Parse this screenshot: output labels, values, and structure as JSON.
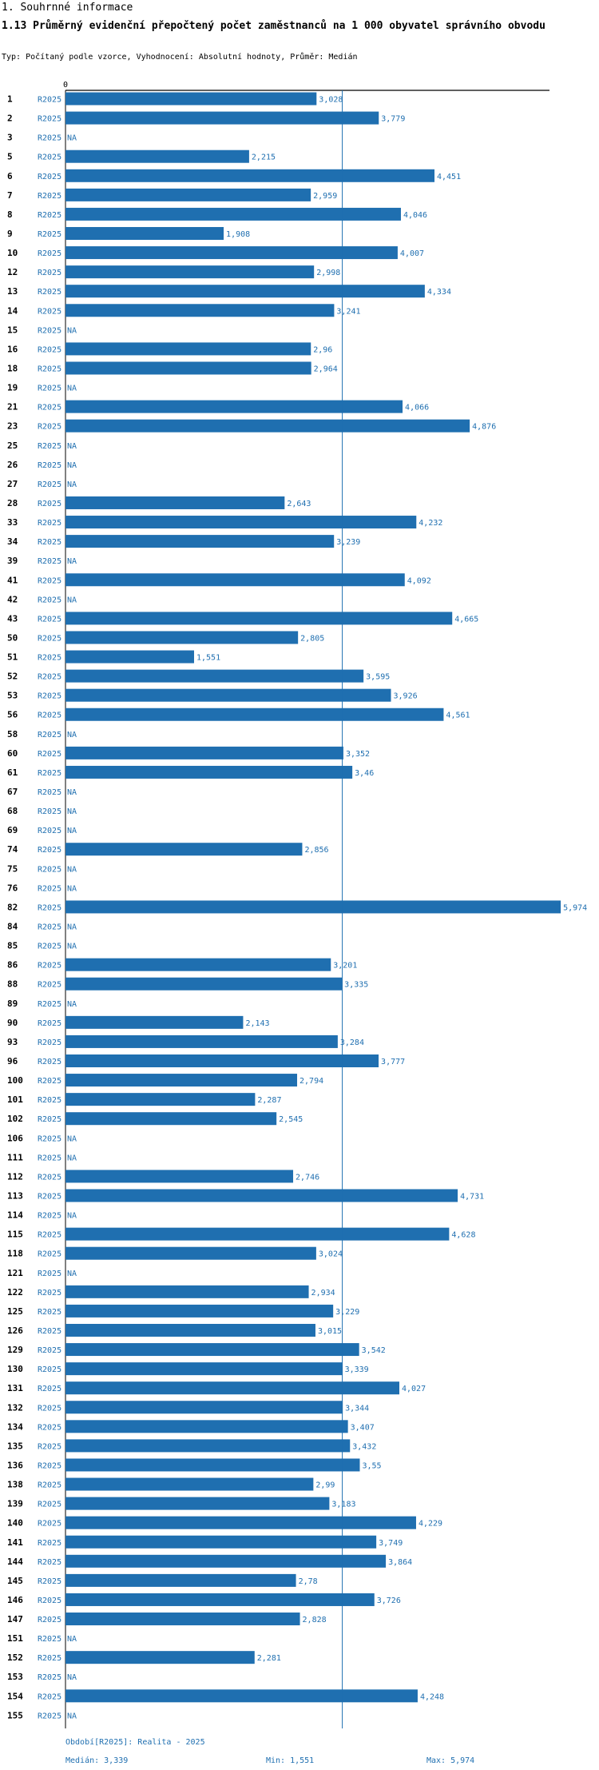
{
  "header": {
    "section": "1. Souhrnné informace",
    "title": "1.13 Průměrný evidenční přepočtený počet zaměstnanců na 1 000 obyvatel správního obvodu",
    "subtitle": "Typ: Počítaný podle vzorce, Vyhodnocení: Absolutní hodnoty, Průměr: Medián"
  },
  "colors": {
    "bar": "#1f6fb0",
    "label": "#1f6fb0",
    "axis": "#000000",
    "median_line": "#1f6fb0"
  },
  "chart_data": {
    "type": "bar",
    "orientation": "horizontal",
    "axis_min_label": "0",
    "xlim": [
      0,
      6.2
    ],
    "series_label": "R2025",
    "na_label": "NA",
    "median": 3.339,
    "categories": [
      "1",
      "2",
      "3",
      "5",
      "6",
      "7",
      "8",
      "9",
      "10",
      "12",
      "13",
      "14",
      "15",
      "16",
      "18",
      "19",
      "21",
      "23",
      "25",
      "26",
      "27",
      "28",
      "33",
      "34",
      "39",
      "41",
      "42",
      "43",
      "50",
      "51",
      "52",
      "53",
      "56",
      "58",
      "60",
      "61",
      "67",
      "68",
      "69",
      "74",
      "75",
      "76",
      "82",
      "84",
      "85",
      "86",
      "88",
      "89",
      "90",
      "93",
      "96",
      "100",
      "101",
      "102",
      "106",
      "111",
      "112",
      "113",
      "114",
      "115",
      "118",
      "121",
      "122",
      "125",
      "126",
      "129",
      "130",
      "131",
      "132",
      "134",
      "135",
      "136",
      "138",
      "139",
      "140",
      "141",
      "144",
      "145",
      "146",
      "147",
      "151",
      "152",
      "153",
      "154",
      "155"
    ],
    "values": [
      3.028,
      3.779,
      null,
      2.215,
      4.451,
      2.959,
      4.046,
      1.908,
      4.007,
      2.998,
      4.334,
      3.241,
      null,
      2.96,
      2.964,
      null,
      4.066,
      4.876,
      null,
      null,
      null,
      2.643,
      4.232,
      3.239,
      null,
      4.092,
      null,
      4.665,
      2.805,
      1.551,
      3.595,
      3.926,
      4.561,
      null,
      3.352,
      3.46,
      null,
      null,
      null,
      2.856,
      null,
      null,
      5.974,
      null,
      null,
      3.201,
      3.335,
      null,
      2.143,
      3.284,
      3.777,
      2.794,
      2.287,
      2.545,
      null,
      null,
      2.746,
      4.731,
      null,
      4.628,
      3.024,
      null,
      2.934,
      3.229,
      3.015,
      3.542,
      3.339,
      4.027,
      3.344,
      3.407,
      3.432,
      3.55,
      2.99,
      3.183,
      4.229,
      3.749,
      3.864,
      2.78,
      3.726,
      2.828,
      null,
      2.281,
      null,
      4.248,
      null
    ],
    "value_labels": [
      "3,028",
      "3,779",
      "NA",
      "2,215",
      "4,451",
      "2,959",
      "4,046",
      "1,908",
      "4,007",
      "2,998",
      "4,334",
      "3,241",
      "NA",
      "2,96",
      "2,964",
      "NA",
      "4,066",
      "4,876",
      "NA",
      "NA",
      "NA",
      "2,643",
      "4,232",
      "3,239",
      "NA",
      "4,092",
      "NA",
      "4,665",
      "2,805",
      "1,551",
      "3,595",
      "3,926",
      "4,561",
      "NA",
      "3,352",
      "3,46",
      "NA",
      "NA",
      "NA",
      "2,856",
      "NA",
      "NA",
      "5,974",
      "NA",
      "NA",
      "3,201",
      "3,335",
      "NA",
      "2,143",
      "3,284",
      "3,777",
      "2,794",
      "2,287",
      "2,545",
      "NA",
      "NA",
      "2,746",
      "4,731",
      "NA",
      "4,628",
      "3,024",
      "NA",
      "2,934",
      "3,229",
      "3,015",
      "3,542",
      "3,339",
      "4,027",
      "3,344",
      "3,407",
      "3,432",
      "3,55",
      "2,99",
      "3,183",
      "4,229",
      "3,749",
      "3,864",
      "2,78",
      "3,726",
      "2,828",
      "NA",
      "2,281",
      "NA",
      "4,248",
      "NA"
    ]
  },
  "footer": {
    "period": "Období[R2025]: Realita - 2025",
    "median": "Medián: 3,339",
    "min": "Min: 1,551",
    "max": "Max: 5,974"
  }
}
